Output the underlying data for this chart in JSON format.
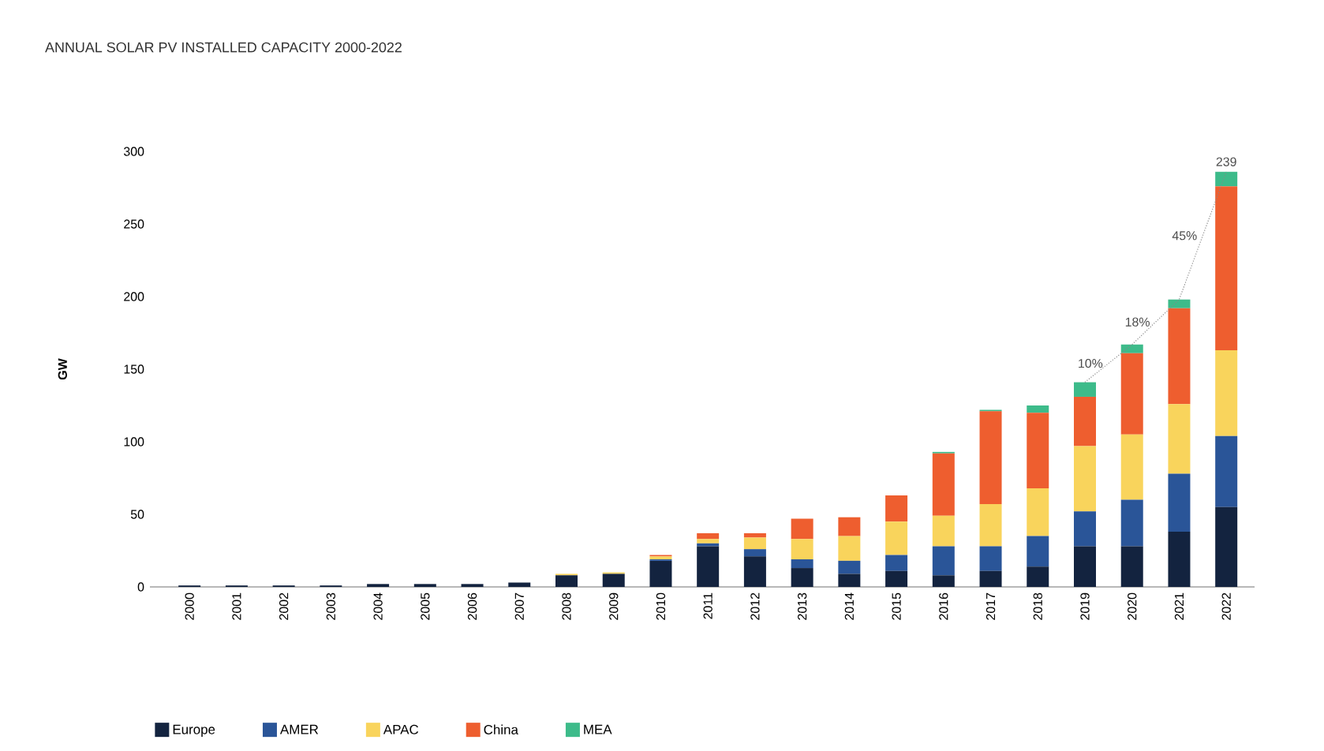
{
  "chart_data": {
    "type": "bar",
    "stacked": true,
    "title": "ANNUAL SOLAR PV INSTALLED CAPACITY 2000-2022",
    "ylabel": "GW",
    "categories": [
      "2000",
      "2001",
      "2002",
      "2003",
      "2004",
      "2005",
      "2006",
      "2007",
      "2008",
      "2009",
      "2010",
      "2011",
      "2012",
      "2013",
      "2014",
      "2015",
      "2016",
      "2017",
      "2018",
      "2019",
      "2020",
      "2021",
      "2022"
    ],
    "series": [
      {
        "name": "Europe",
        "color": "#13233f",
        "values": [
          1,
          1,
          1,
          1,
          2,
          2,
          2,
          3,
          8,
          9,
          18,
          28,
          21,
          13,
          9,
          11,
          8,
          11,
          14,
          28,
          28,
          38,
          55
        ]
      },
      {
        "name": "AMER",
        "color": "#2a5598",
        "values": [
          0,
          0,
          0,
          0,
          0,
          0,
          0,
          0,
          0,
          0,
          1,
          2,
          5,
          6,
          9,
          11,
          20,
          17,
          21,
          24,
          32,
          40,
          49
        ]
      },
      {
        "name": "APAC",
        "color": "#f9d45c",
        "values": [
          0,
          0,
          0,
          0,
          0,
          0,
          0,
          0,
          1,
          1,
          2,
          3,
          8,
          14,
          17,
          23,
          21,
          29,
          33,
          45,
          45,
          48,
          59
        ]
      },
      {
        "name": "China",
        "color": "#ee5e2f",
        "values": [
          0,
          0,
          0,
          0,
          0,
          0,
          0,
          0,
          0,
          0,
          1,
          4,
          3,
          14,
          13,
          18,
          43,
          64,
          52,
          34,
          56,
          66,
          113
        ]
      },
      {
        "name": "MEA",
        "color": "#3dbb8a",
        "values": [
          0,
          0,
          0,
          0,
          0,
          0,
          0,
          0,
          0,
          0,
          0,
          0,
          0,
          0,
          0,
          0,
          1,
          1,
          5,
          10,
          6,
          6,
          10
        ]
      },
      {
        "type": "line",
        "line_style": "dotted",
        "color": "#888888",
        "values": [
          null,
          null,
          null,
          null,
          null,
          null,
          null,
          null,
          null,
          null,
          null,
          null,
          null,
          null,
          null,
          null,
          null,
          null,
          null,
          141,
          167,
          198,
          286
        ]
      }
    ],
    "ylim": [
      0,
      300
    ],
    "yticks": [
      0,
      50,
      100,
      150,
      200,
      250,
      300
    ],
    "grid": false,
    "legend": "bottom",
    "annotations": [
      "10%",
      "18%",
      "45%",
      "239"
    ]
  }
}
